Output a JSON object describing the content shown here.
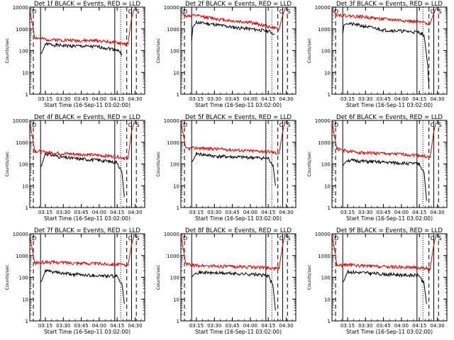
{
  "figure": {
    "xlabel": "Start Time (16-Sep-11 03:02:00)",
    "ylabel": "Counts/sec",
    "line_colors": {
      "events": "#000000",
      "lld": "#dd0000"
    }
  },
  "chart_data": [
    {
      "type": "line",
      "title": "Det 1f BLACK = Events, RED = LLD",
      "xlabel": "Start Time (16-Sep-11 03:02:00)",
      "ylabel": "Counts/sec",
      "xlim": [
        "03:02",
        "04:38"
      ],
      "ylim": [
        1,
        10000
      ],
      "yscale": "log",
      "x_ticks": [
        "03:15",
        "03:30",
        "03:45",
        "04:00",
        "04:15",
        "04:30"
      ],
      "y_ticks": [
        "1",
        "10",
        "100",
        "1000",
        "10000"
      ],
      "corner_labels": [
        "D",
        "C",
        "S"
      ],
      "series": [
        {
          "name": "Events",
          "x": [
            "03:11",
            "03:12",
            "03:15",
            "03:30",
            "03:45",
            "04:00",
            "04:15",
            "04:19"
          ],
          "values": [
            70,
            80,
            200,
            170,
            160,
            150,
            110,
            70
          ]
        },
        {
          "name": "LLD",
          "x": [
            "03:02",
            "03:05",
            "03:06",
            "03:15",
            "03:30",
            "03:45",
            "04:00",
            "04:15",
            "04:24",
            "04:27",
            "04:29"
          ],
          "values": [
            7000,
            1000,
            400,
            330,
            310,
            290,
            290,
            230,
            200,
            3000,
            8000
          ]
        }
      ]
    },
    {
      "type": "line",
      "title": "Det 2f BLACK = Events, RED = LLD",
      "xlabel": "Start Time (16-Sep-11 03:02:00)",
      "ylabel": "Counts/sec",
      "xlim": [
        "03:02",
        "04:38"
      ],
      "ylim": [
        1,
        10000
      ],
      "yscale": "log",
      "x_ticks": [
        "03:15",
        "03:30",
        "03:45",
        "04:00",
        "04:15",
        "04:30"
      ],
      "y_ticks": [
        "1",
        "10",
        "100",
        "1000",
        "10000"
      ],
      "corner_labels": [
        "D",
        "C",
        "S"
      ],
      "series": [
        {
          "name": "Events",
          "x": [
            "03:11",
            "03:12",
            "03:15",
            "03:30",
            "03:45",
            "04:00",
            "04:15",
            "04:20"
          ],
          "values": [
            300,
            1200,
            2000,
            1600,
            1200,
            1000,
            800,
            600
          ]
        },
        {
          "name": "LLD",
          "x": [
            "03:02",
            "03:05",
            "03:06",
            "03:15",
            "03:30",
            "03:45",
            "04:00",
            "04:15",
            "04:24",
            "04:27",
            "04:29"
          ],
          "values": [
            7000,
            4000,
            4000,
            4000,
            3000,
            2300,
            2000,
            1300,
            1000,
            4000,
            9000
          ]
        }
      ]
    },
    {
      "type": "line",
      "title": "Det 3f BLACK = Events, RED = LLD",
      "xlabel": "Start Time (16-Sep-11 03:02:00)",
      "ylabel": "Counts/sec",
      "xlim": [
        "03:02",
        "04:38"
      ],
      "ylim": [
        1,
        10000
      ],
      "yscale": "log",
      "x_ticks": [
        "03:15",
        "03:30",
        "03:45",
        "04:00",
        "04:15",
        "04:30"
      ],
      "y_ticks": [
        "1",
        "10",
        "100",
        "1000",
        "10000"
      ],
      "corner_labels": [
        "D",
        "C",
        "S"
      ],
      "series": [
        {
          "name": "Events",
          "x": [
            "03:11",
            "03:12",
            "03:15",
            "03:30",
            "03:45",
            "04:00",
            "04:15",
            "04:19",
            "04:22",
            "04:23"
          ],
          "values": [
            600,
            1500,
            1800,
            1300,
            900,
            800,
            700,
            500,
            20,
            2
          ]
        },
        {
          "name": "LLD",
          "x": [
            "03:02",
            "03:05",
            "03:06",
            "03:15",
            "03:30",
            "03:45",
            "04:00",
            "04:15",
            "04:24",
            "04:27",
            "04:29"
          ],
          "values": [
            8000,
            5000,
            4500,
            4000,
            3500,
            2800,
            2500,
            2000,
            1800,
            5000,
            9000
          ]
        }
      ]
    },
    {
      "type": "line",
      "title": "Det 4f BLACK = Events, RED = LLD",
      "xlabel": "Start Time (16-Sep-11 03:02:00)",
      "ylabel": "Counts/sec",
      "xlim": [
        "03:02",
        "04:38"
      ],
      "ylim": [
        1,
        10000
      ],
      "yscale": "log",
      "x_ticks": [
        "03:15",
        "03:30",
        "03:45",
        "04:00",
        "04:15",
        "04:30"
      ],
      "y_ticks": [
        "1",
        "10",
        "100",
        "1000",
        "10000"
      ],
      "corner_labels": [
        "D",
        "C",
        "S"
      ],
      "series": [
        {
          "name": "Events",
          "x": [
            "03:11",
            "03:12",
            "03:15",
            "03:30",
            "03:45",
            "04:00",
            "04:15",
            "04:19",
            "04:21"
          ],
          "values": [
            70,
            90,
            300,
            200,
            170,
            150,
            120,
            40,
            3
          ]
        },
        {
          "name": "LLD",
          "x": [
            "03:02",
            "03:05",
            "03:06",
            "03:15",
            "03:30",
            "03:45",
            "04:00",
            "04:15",
            "04:24",
            "04:27",
            "04:29"
          ],
          "values": [
            8000,
            1000,
            400,
            350,
            300,
            280,
            250,
            220,
            180,
            3000,
            8000
          ]
        }
      ]
    },
    {
      "type": "line",
      "title": "Det 5f BLACK = Events, RED = LLD",
      "xlabel": "Start Time (16-Sep-11 03:02:00)",
      "ylabel": "Counts/sec",
      "xlim": [
        "03:02",
        "04:38"
      ],
      "ylim": [
        1,
        10000
      ],
      "yscale": "log",
      "x_ticks": [
        "03:15",
        "03:30",
        "03:45",
        "04:00",
        "04:15",
        "04:30"
      ],
      "y_ticks": [
        "1",
        "10",
        "100",
        "1000",
        "10000"
      ],
      "corner_labels": [
        "D",
        "C",
        "S"
      ],
      "series": [
        {
          "name": "Events",
          "x": [
            "03:11",
            "03:12",
            "03:15",
            "03:30",
            "03:45",
            "04:00",
            "04:15",
            "04:19",
            "04:21"
          ],
          "values": [
            120,
            140,
            300,
            230,
            210,
            200,
            180,
            90,
            10
          ]
        },
        {
          "name": "LLD",
          "x": [
            "03:02",
            "03:05",
            "03:06",
            "03:15",
            "03:30",
            "03:45",
            "04:00",
            "04:15",
            "04:24",
            "04:27",
            "04:29"
          ],
          "values": [
            8000,
            1200,
            500,
            550,
            500,
            450,
            400,
            380,
            300,
            3000,
            9000
          ]
        }
      ]
    },
    {
      "type": "line",
      "title": "Det 6f BLACK = Events, RED = LLD",
      "xlabel": "Start Time (16-Sep-11 03:02:00)",
      "ylabel": "Counts/sec",
      "xlim": [
        "03:02",
        "04:38"
      ],
      "ylim": [
        1,
        10000
      ],
      "yscale": "log",
      "x_ticks": [
        "03:15",
        "03:30",
        "03:45",
        "04:00",
        "04:15",
        "04:30"
      ],
      "y_ticks": [
        "1",
        "10",
        "100",
        "1000",
        "10000"
      ],
      "corner_labels": [
        "D",
        "C",
        "S"
      ],
      "series": [
        {
          "name": "Events",
          "x": [
            "03:11",
            "03:12",
            "03:15",
            "03:30",
            "03:45",
            "04:00",
            "04:15",
            "04:19",
            "04:21"
          ],
          "values": [
            80,
            100,
            150,
            130,
            120,
            110,
            100,
            40,
            2
          ]
        },
        {
          "name": "LLD",
          "x": [
            "03:02",
            "03:05",
            "03:06",
            "03:15",
            "03:30",
            "03:45",
            "04:00",
            "04:15",
            "04:24",
            "04:27",
            "04:29"
          ],
          "values": [
            8000,
            1000,
            500,
            380,
            330,
            300,
            280,
            250,
            200,
            3000,
            8000
          ]
        }
      ]
    },
    {
      "type": "line",
      "title": "Det 7f BLACK = Events, RED = LLD",
      "xlabel": "Start Time (16-Sep-11 03:02:00)",
      "ylabel": "Counts/sec",
      "xlim": [
        "03:02",
        "04:38"
      ],
      "ylim": [
        1,
        10000
      ],
      "yscale": "log",
      "x_ticks": [
        "03:15",
        "03:30",
        "03:45",
        "04:00",
        "04:15",
        "04:30"
      ],
      "y_ticks": [
        "1",
        "10",
        "100",
        "1000",
        "10000"
      ],
      "corner_labels": [
        "D",
        "C",
        "S"
      ],
      "series": [
        {
          "name": "Events",
          "x": [
            "03:11",
            "03:12",
            "03:15",
            "03:30",
            "03:45",
            "04:00",
            "04:15",
            "04:19",
            "04:21"
          ],
          "values": [
            60,
            70,
            200,
            150,
            130,
            120,
            110,
            50,
            6
          ]
        },
        {
          "name": "LLD",
          "x": [
            "03:02",
            "03:05",
            "03:06",
            "03:15",
            "03:30",
            "03:45",
            "04:00",
            "04:15",
            "04:24",
            "04:27",
            "04:29"
          ],
          "values": [
            8000,
            1000,
            450,
            500,
            480,
            450,
            420,
            400,
            350,
            3000,
            9000
          ]
        }
      ]
    },
    {
      "type": "line",
      "title": "Det 8f BLACK = Events, RED = LLD",
      "xlabel": "Start Time (16-Sep-11 03:02:00)",
      "ylabel": "Counts/sec",
      "xlim": [
        "03:02",
        "04:38"
      ],
      "ylim": [
        1,
        10000
      ],
      "yscale": "log",
      "x_ticks": [
        "03:15",
        "03:30",
        "03:45",
        "04:00",
        "04:15",
        "04:30"
      ],
      "y_ticks": [
        "1",
        "10",
        "100",
        "1000",
        "10000"
      ],
      "corner_labels": [
        "D",
        "C",
        "S"
      ],
      "series": [
        {
          "name": "Events",
          "x": [
            "03:11",
            "03:12",
            "03:15",
            "03:30",
            "03:45",
            "04:00",
            "04:15",
            "04:19",
            "04:21"
          ],
          "values": [
            100,
            120,
            170,
            160,
            150,
            140,
            120,
            40,
            3
          ]
        },
        {
          "name": "LLD",
          "x": [
            "03:02",
            "03:05",
            "03:06",
            "03:15",
            "03:30",
            "03:45",
            "04:00",
            "04:15",
            "04:24",
            "04:27",
            "04:29"
          ],
          "values": [
            8000,
            1000,
            400,
            350,
            330,
            310,
            300,
            280,
            250,
            3000,
            9000
          ]
        }
      ]
    },
    {
      "type": "line",
      "title": "Det 9f BLACK = Events, RED = LLD",
      "xlabel": "Start Time (16-Sep-11 03:02:00)",
      "ylabel": "Counts/sec",
      "xlim": [
        "03:02",
        "04:38"
      ],
      "ylim": [
        1,
        10000
      ],
      "yscale": "log",
      "x_ticks": [
        "03:15",
        "03:30",
        "03:45",
        "04:00",
        "04:15",
        "04:30"
      ],
      "y_ticks": [
        "1",
        "10",
        "100",
        "1000",
        "10000"
      ],
      "corner_labels": [
        "D",
        "C",
        "S"
      ],
      "series": [
        {
          "name": "Events",
          "x": [
            "03:11",
            "03:12",
            "03:15",
            "03:30",
            "03:45",
            "04:00",
            "04:15",
            "04:19",
            "04:21"
          ],
          "values": [
            60,
            70,
            180,
            160,
            140,
            130,
            120,
            50,
            6
          ]
        },
        {
          "name": "LLD",
          "x": [
            "03:02",
            "03:05",
            "03:06",
            "03:15",
            "03:30",
            "03:45",
            "04:00",
            "04:15",
            "04:24",
            "04:27",
            "04:29"
          ],
          "values": [
            8000,
            1000,
            350,
            380,
            330,
            310,
            300,
            280,
            250,
            3000,
            9000
          ]
        }
      ]
    }
  ]
}
